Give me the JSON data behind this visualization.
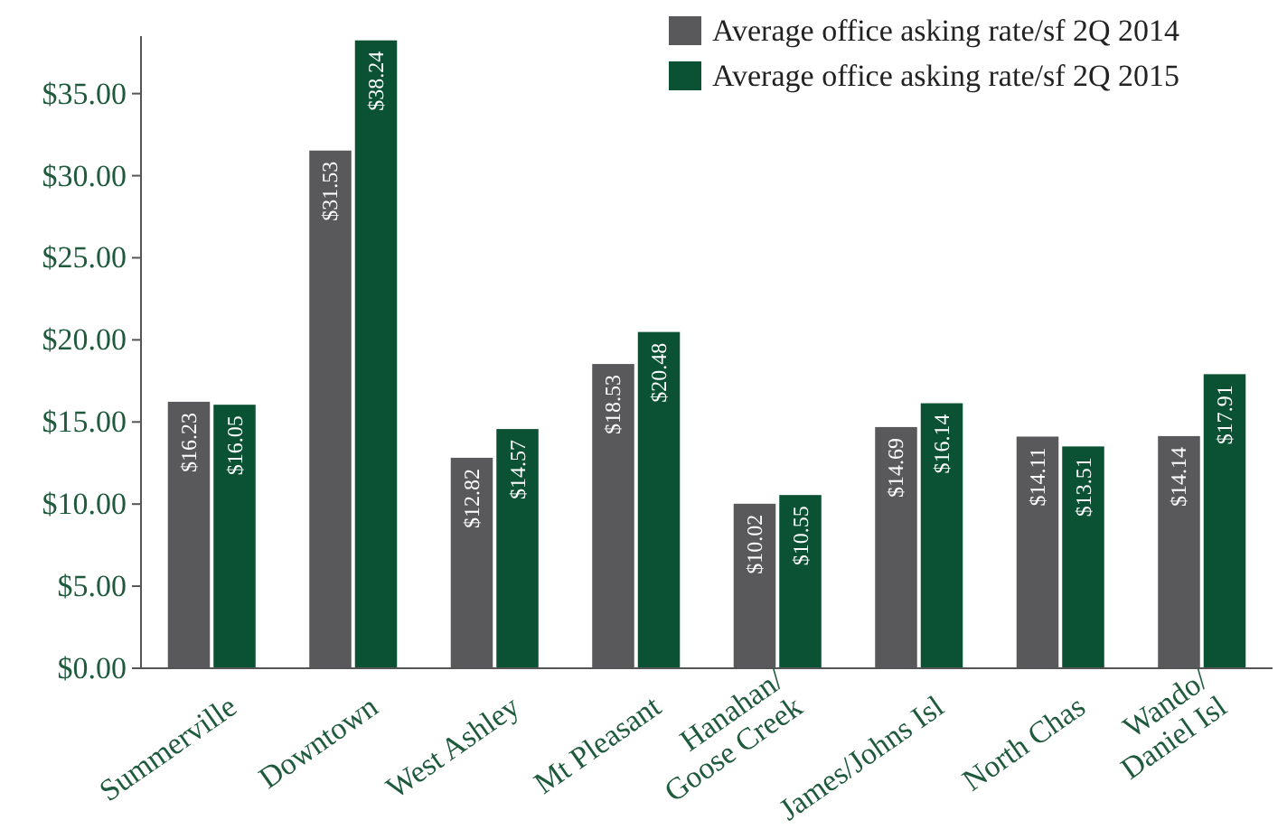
{
  "chart_data": {
    "type": "bar",
    "categories": [
      "Summerville",
      "Downtown",
      "West Ashley",
      "Mt Pleasant",
      "Hanahan/\nGoose Creek",
      "James/Johns Isl",
      "North Chas",
      "Wando/\nDaniel Isl"
    ],
    "series": [
      {
        "name": "Average office asking rate/sf 2Q 2014",
        "color": "#59595b",
        "values": [
          16.23,
          31.53,
          12.82,
          18.53,
          10.02,
          14.69,
          14.11,
          14.14
        ]
      },
      {
        "name": "Average office asking rate/sf 2Q 2015",
        "color": "#0b5134",
        "values": [
          16.05,
          38.24,
          14.57,
          20.48,
          10.55,
          16.14,
          13.51,
          17.91
        ]
      }
    ],
    "value_labels": [
      [
        "$16.23",
        "$31.53",
        "$12.82",
        "$18.53",
        "$10.02",
        "$14.69",
        "$14.11",
        "$14.14"
      ],
      [
        "$16.05",
        "$38.24",
        "$14.57",
        "$20.48",
        "$10.55",
        "$16.14",
        "$13.51",
        "$17.91"
      ]
    ],
    "ylim": [
      0,
      38.5
    ],
    "yticks": [
      {
        "value": 0,
        "label": "$0.00"
      },
      {
        "value": 5,
        "label": "$5.00"
      },
      {
        "value": 10,
        "label": "$10.00"
      },
      {
        "value": 15,
        "label": "$15.00"
      },
      {
        "value": 20,
        "label": "$20.00"
      },
      {
        "value": 25,
        "label": "$25.00"
      },
      {
        "value": 30,
        "label": "$30.00"
      },
      {
        "value": 35,
        "label": "$35.00"
      }
    ],
    "grid": false,
    "legend": "top right"
  }
}
